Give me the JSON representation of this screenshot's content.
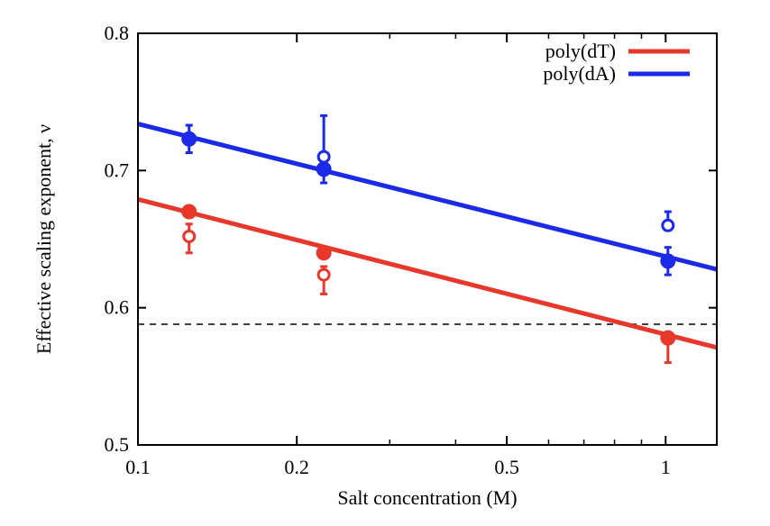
{
  "chart_data": {
    "type": "scatter",
    "title": "",
    "xlabel": "Salt concentration (M)",
    "ylabel": "Effective scaling exponent, ν",
    "xscale": "log",
    "xlim": [
      0.1,
      1.25
    ],
    "ylim": [
      0.5,
      0.8
    ],
    "x_ticks": [
      0.1,
      0.2,
      0.5,
      1
    ],
    "x_tick_labels": [
      "0.1",
      "0.2",
      "0.5",
      "1"
    ],
    "y_ticks": [
      0.5,
      0.6,
      0.7,
      0.8
    ],
    "y_tick_labels": [
      "0.5",
      "0.6",
      "0.7",
      "0.8"
    ],
    "reference_line": {
      "y": 0.588,
      "style": "dashed"
    },
    "legend_position": "top-right",
    "series": [
      {
        "name": "poly(dT)",
        "color": "#e8382b",
        "fit_line": {
          "y_at_xmin": 0.679,
          "y_at_xmax": 0.571
        },
        "filled_points": [
          {
            "x": 0.125,
            "y": 0.67,
            "err_low": 0.004,
            "err_high": 0.004
          },
          {
            "x": 0.225,
            "y": 0.64,
            "err_low": 0.003,
            "err_high": 0.003
          },
          {
            "x": 1.01,
            "y": 0.578,
            "err_low": 0.018,
            "err_high": 0.0
          }
        ],
        "open_points": [
          {
            "x": 0.125,
            "y": 0.652,
            "err_low": 0.012,
            "err_high": 0.009
          },
          {
            "x": 0.225,
            "y": 0.624,
            "err_low": 0.014,
            "err_high": 0.006
          }
        ]
      },
      {
        "name": "poly(dA)",
        "color": "#1a2ae8",
        "fit_line": {
          "y_at_xmin": 0.734,
          "y_at_xmax": 0.628
        },
        "filled_points": [
          {
            "x": 0.125,
            "y": 0.723,
            "err_low": 0.01,
            "err_high": 0.01
          },
          {
            "x": 0.225,
            "y": 0.701,
            "err_low": 0.01,
            "err_high": 0.0
          },
          {
            "x": 1.01,
            "y": 0.634,
            "err_low": 0.01,
            "err_high": 0.01
          }
        ],
        "open_points": [
          {
            "x": 0.225,
            "y": 0.71,
            "err_low": 0.0,
            "err_high": 0.03
          },
          {
            "x": 1.01,
            "y": 0.66,
            "err_low": 0.0,
            "err_high": 0.01
          }
        ]
      }
    ]
  }
}
